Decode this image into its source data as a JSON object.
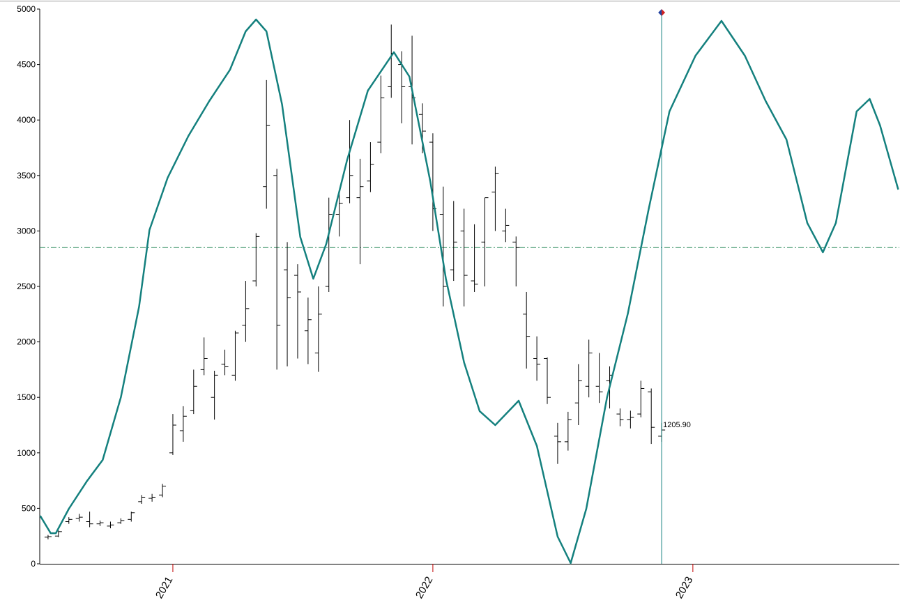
{
  "chart_data": {
    "type": "ohlc",
    "xlim": [
      2020.488,
      2023.794
    ],
    "ylim": [
      0,
      5000
    ],
    "yticks": [
      0,
      500,
      1000,
      1500,
      2000,
      2500,
      3000,
      3500,
      4000,
      4500,
      5000
    ],
    "xticks": [
      2021,
      2022,
      2023
    ],
    "hline": 2850,
    "vline": 2022.88,
    "last_label": "1205.90",
    "series": [
      {
        "type": "ohlc",
        "color": "#000000",
        "x": [
          2020.52,
          2020.56,
          2020.6,
          2020.64,
          2020.68,
          2020.72,
          2020.76,
          2020.8,
          2020.84,
          2020.88,
          2020.92,
          2020.96,
          2021.0,
          2021.04,
          2021.08,
          2021.12,
          2021.16,
          2021.2,
          2021.24,
          2021.28,
          2021.32,
          2021.36,
          2021.4,
          2021.44,
          2021.48,
          2021.52,
          2021.56,
          2021.6,
          2021.64,
          2021.68,
          2021.72,
          2021.76,
          2021.8,
          2021.84,
          2021.88,
          2021.92,
          2021.96,
          2022.0,
          2022.04,
          2022.08,
          2022.12,
          2022.16,
          2022.2,
          2022.24,
          2022.28,
          2022.32,
          2022.36,
          2022.4,
          2022.44,
          2022.48,
          2022.52,
          2022.56,
          2022.6,
          2022.64,
          2022.68,
          2022.72,
          2022.76,
          2022.8,
          2022.84,
          2022.88
        ],
        "open": [
          240,
          250,
          380,
          410,
          380,
          360,
          340,
          370,
          400,
          560,
          590,
          620,
          1000,
          1200,
          1380,
          1750,
          1500,
          1800,
          1700,
          2150,
          2550,
          3400,
          3500,
          2650,
          2600,
          2100,
          1900,
          2500,
          3150,
          3300,
          3300,
          3450,
          3800,
          4300,
          4500,
          4300,
          4050,
          3800,
          3150,
          2650,
          3000,
          2550,
          2900,
          3350,
          3000,
          2900,
          2250,
          1850,
          1850,
          1150,
          1100,
          1450,
          1600,
          1600,
          1650,
          1350,
          1300,
          1350,
          1550,
          1150
        ],
        "high": [
          260,
          300,
          420,
          450,
          470,
          390,
          380,
          410,
          470,
          620,
          630,
          720,
          1350,
          1420,
          1750,
          2040,
          1740,
          1930,
          2100,
          2550,
          2980,
          4360,
          3560,
          2900,
          2700,
          2400,
          2500,
          3300,
          3350,
          4000,
          3650,
          3800,
          4400,
          4860,
          4620,
          4760,
          4150,
          3880,
          3400,
          3270,
          3200,
          3060,
          3300,
          3580,
          3200,
          2950,
          2450,
          2050,
          1860,
          1270,
          1370,
          1800,
          2020,
          1900,
          1780,
          1400,
          1380,
          1650,
          1580,
          1270
        ],
        "low": [
          220,
          240,
          360,
          380,
          330,
          340,
          320,
          360,
          380,
          540,
          560,
          600,
          980,
          1100,
          1350,
          1700,
          1300,
          1700,
          1650,
          2000,
          2500,
          3200,
          1750,
          1780,
          1850,
          1800,
          1730,
          2450,
          2950,
          3250,
          2700,
          3350,
          3700,
          4200,
          3970,
          3780,
          3700,
          3000,
          2320,
          2550,
          2320,
          2450,
          2500,
          3000,
          2900,
          2500,
          1760,
          1650,
          1440,
          900,
          1020,
          1250,
          1500,
          1450,
          1400,
          1240,
          1220,
          1320,
          1080,
          1100
        ],
        "close": [
          245,
          290,
          400,
          420,
          360,
          370,
          350,
          390,
          460,
          600,
          600,
          700,
          1250,
          1330,
          1600,
          1850,
          1700,
          1780,
          2080,
          2300,
          2950,
          3950,
          2150,
          2400,
          2450,
          2200,
          2250,
          3150,
          3250,
          3500,
          3400,
          3600,
          4200,
          4600,
          4300,
          4200,
          3900,
          3200,
          2500,
          2900,
          2600,
          2520,
          3300,
          3520,
          3050,
          2850,
          2050,
          1800,
          1500,
          1100,
          1300,
          1650,
          1900,
          1550,
          1700,
          1300,
          1320,
          1580,
          1230,
          1205.9
        ]
      },
      {
        "type": "line",
        "color": "#14807e",
        "x": [
          2020.49,
          2020.53,
          2020.55,
          2020.6,
          2020.67,
          2020.73,
          2020.8,
          2020.87,
          2020.91,
          2020.98,
          2021.06,
          2021.14,
          2021.22,
          2021.28,
          2021.32,
          2021.36,
          2021.42,
          2021.49,
          2021.54,
          2021.59,
          2021.67,
          2021.75,
          2021.85,
          2021.91,
          2021.99,
          2022.05,
          2022.12,
          2022.18,
          2022.24,
          2022.33,
          2022.4,
          2022.48,
          2022.53,
          2022.59,
          2022.67,
          2022.75,
          2022.83,
          2022.91,
          2023.01,
          2023.11,
          2023.2,
          2023.28,
          2023.36,
          2023.44,
          2023.5,
          2023.55,
          2023.63,
          2023.68,
          2023.72,
          2023.79
        ],
        "values": [
          433,
          276,
          276,
          496,
          747,
          936,
          1501,
          2318,
          3009,
          3480,
          3857,
          4171,
          4454,
          4799,
          4906,
          4799,
          4140,
          2946,
          2569,
          2883,
          3637,
          4265,
          4611,
          4391,
          3448,
          2569,
          1815,
          1376,
          1250,
          1470,
          1062,
          245,
          6,
          496,
          1501,
          2255,
          3197,
          4077,
          4579,
          4893,
          4579,
          4171,
          3825,
          3072,
          2808,
          3072,
          4077,
          4190,
          3951,
          3373
        ]
      }
    ]
  }
}
